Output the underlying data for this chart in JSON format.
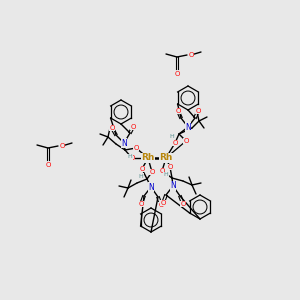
{
  "bg_color": "#e8e8e8",
  "colors": {
    "O": "#ff0000",
    "N": "#0000cc",
    "Rh": "#b8860b",
    "H": "#5a9090",
    "C": "#000000"
  },
  "rh1": [
    148,
    158
  ],
  "rh2": [
    166,
    158
  ]
}
